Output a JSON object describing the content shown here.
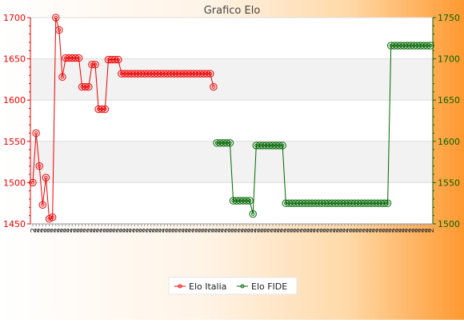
{
  "chart_data": {
    "type": "line",
    "title": "Grafico Elo",
    "legend_position": "bottom-center",
    "grid": true,
    "x_tick_label_prefix": "2",
    "left_axis": {
      "ylim": [
        1450,
        1700
      ],
      "ticks": [
        1450,
        1500,
        1550,
        1600,
        1650,
        1700
      ],
      "color": "#ee0000"
    },
    "right_axis": {
      "ylim": [
        1500,
        1750
      ],
      "ticks": [
        1500,
        1550,
        1600,
        1650,
        1700,
        1750
      ],
      "color": "#006600"
    },
    "series": [
      {
        "name": "Elo Italia",
        "axis": "left",
        "color": "#ee0000",
        "values": [
          1500,
          1560,
          1520,
          1473,
          1506,
          1456,
          1458,
          1700,
          1685,
          1628,
          1651,
          1651,
          1651,
          1651,
          1651,
          1616,
          1616,
          1616,
          1643,
          1643,
          1589,
          1589,
          1589,
          1649,
          1649,
          1649,
          1649,
          1632,
          1632,
          1632,
          1632,
          1632,
          1632,
          1632,
          1632,
          1632,
          1632,
          1632,
          1632,
          1632,
          1632,
          1632,
          1632,
          1632,
          1632,
          1632,
          1632,
          1632,
          1632,
          1632,
          1632,
          1632,
          1632,
          1632,
          1632,
          1616
        ]
      },
      {
        "name": "Elo FIDE",
        "axis": "right",
        "start_index": 56,
        "color": "#006600",
        "values": [
          1598,
          1598,
          1598,
          1598,
          1598,
          1528,
          1528,
          1528,
          1528,
          1528,
          1528,
          1512,
          1595,
          1595,
          1595,
          1595,
          1595,
          1595,
          1595,
          1595,
          1595,
          1525,
          1525,
          1525,
          1525,
          1525,
          1525,
          1525,
          1525,
          1525,
          1525,
          1525,
          1525,
          1525,
          1525,
          1525,
          1525,
          1525,
          1525,
          1525,
          1525,
          1525,
          1525,
          1525,
          1525,
          1525,
          1525,
          1525,
          1525,
          1525,
          1525,
          1525,
          1525,
          1716,
          1716,
          1716,
          1716,
          1716,
          1716,
          1716,
          1716,
          1716,
          1716,
          1716,
          1716,
          1716
        ]
      }
    ]
  }
}
